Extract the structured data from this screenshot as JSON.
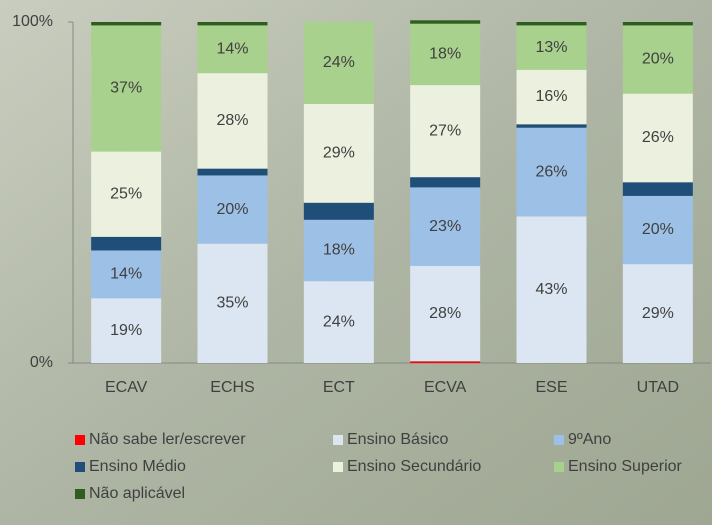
{
  "chart_data": {
    "type": "stacked_bar_100",
    "categories": [
      "ECAV",
      "ECHS",
      "ECT",
      "ECVA",
      "ESE",
      "UTAD"
    ],
    "ylim": [
      0,
      100
    ],
    "yticks": [
      {
        "value": 0,
        "label": "0%"
      },
      {
        "value": 100,
        "label": "100%"
      }
    ],
    "series": [
      {
        "name": "Não sabe ler/escrever",
        "color": "#ff0000",
        "values": [
          0,
          0,
          0,
          0.5,
          0,
          0
        ]
      },
      {
        "name": "Ensino Básico",
        "color": "#dce6f2",
        "values": [
          19,
          35,
          24,
          28,
          43,
          29
        ],
        "value_labels": [
          "19%",
          "35%",
          "24%",
          "28%",
          "43%",
          "29%"
        ]
      },
      {
        "name": "9ºAno",
        "color": "#9dc1e6",
        "values": [
          14,
          20,
          18,
          23,
          26,
          20
        ],
        "value_labels": [
          "14%",
          "20%",
          "18%",
          "23%",
          "26%",
          "20%"
        ]
      },
      {
        "name": "Ensino Médio",
        "color": "#1f4e79",
        "values": [
          4,
          2,
          5,
          3,
          1,
          4
        ]
      },
      {
        "name": "Ensino Secundário",
        "color": "#ebf1de",
        "values": [
          25,
          28,
          29,
          27,
          16,
          26
        ],
        "value_labels": [
          "25%",
          "28%",
          "29%",
          "27%",
          "16%",
          "26%"
        ]
      },
      {
        "name": "Ensino Superior",
        "color": "#a9d18e",
        "values": [
          37,
          14,
          24,
          18,
          13,
          20
        ],
        "value_labels": [
          "37%",
          "14%",
          "24%",
          "18%",
          "13%",
          "20%"
        ]
      },
      {
        "name": "Não aplicável",
        "color": "#2e5e1f",
        "values": [
          1,
          1,
          0,
          1,
          1,
          1
        ]
      }
    ]
  }
}
